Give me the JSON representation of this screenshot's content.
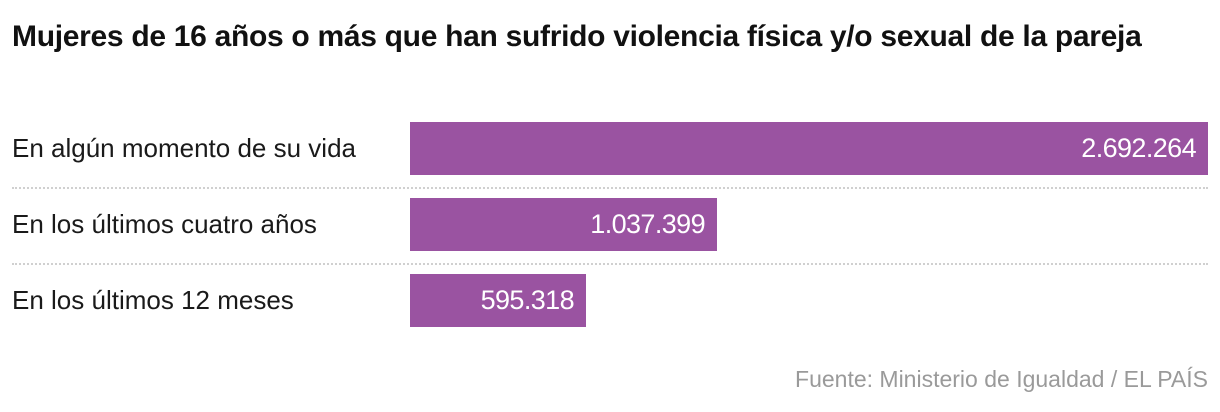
{
  "title": "Mujeres de 16 años o más que han sufrido violencia física y/o sexual de la pareja",
  "source": "Fuente: Ministerio de Igualdad / EL PAÍS",
  "colors": {
    "bar": "#9a53a1",
    "value_text": "#ffffff",
    "separator": "#d0d0d0",
    "source_text": "#9a9a9a"
  },
  "rows": [
    {
      "label": "En algún momento de su vida",
      "value": 2692264,
      "display": "2.692.264"
    },
    {
      "label": "En los últimos cuatro años",
      "value": 1037399,
      "display": "1.037.399"
    },
    {
      "label": "En los últimos 12 meses",
      "value": 595318,
      "display": "595.318"
    }
  ],
  "chart_data": {
    "type": "bar",
    "orientation": "horizontal",
    "title": "Mujeres de 16 años o más que han sufrido violencia física y/o sexual de la pareja",
    "categories": [
      "En algún momento de su vida",
      "En los últimos cuatro años",
      "En los últimos 12 meses"
    ],
    "values": [
      2692264,
      1037399,
      595318
    ],
    "value_labels": [
      "2.692.264",
      "1.037.399",
      "595.318"
    ],
    "xlabel": "",
    "ylabel": "",
    "xlim": [
      0,
      2692264
    ],
    "grid": false,
    "legend": null,
    "source": "Fuente: Ministerio de Igualdad / EL PAÍS",
    "bar_color": "#9a53a1"
  }
}
